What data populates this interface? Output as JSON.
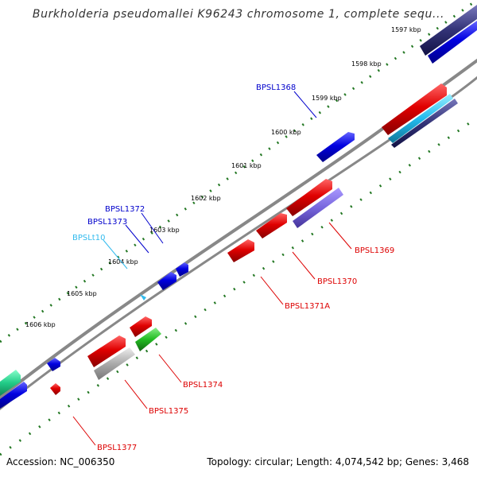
{
  "title": "Burkholderia pseudomallei K96243 chromosome 1, complete sequ...",
  "footer": {
    "accession": "Accession: NC_006350",
    "summary": "Topology: circular; Length: 4,074,542 bp; Genes: 3,468"
  },
  "ruler": {
    "ticks": [
      "1597 kbp",
      "1598 kbp",
      "1599 kbp",
      "1600 kbp",
      "1601 kbp",
      "1602 kbp",
      "1603 kbp",
      "1604 kbp",
      "1605 kbp",
      "1606 kbp"
    ]
  },
  "gene_labels": [
    {
      "text": "BPSL1368",
      "color": "#0000cc"
    },
    {
      "text": "BPSL1372",
      "color": "#0000cc"
    },
    {
      "text": "BPSL1373",
      "color": "#0000cc"
    },
    {
      "text": "BPSLt10",
      "color": "#33bbee"
    },
    {
      "text": "BPSL1369",
      "color": "#dd0000"
    },
    {
      "text": "BPSL1370",
      "color": "#dd0000"
    },
    {
      "text": "BPSL1371A",
      "color": "#dd0000"
    },
    {
      "text": "BPSL1374",
      "color": "#dd0000"
    },
    {
      "text": "BPSL1375",
      "color": "#dd0000"
    },
    {
      "text": "BPSL1377",
      "color": "#dd0000"
    }
  ],
  "colors": {
    "backbone": "#808080",
    "dots": "#227722",
    "forward_cds": "#0000e0",
    "reverse_cds": "#e00000",
    "trna": "#33bbee",
    "rna_green": "#22bb22",
    "pseudo_grey": "#aaaaaa",
    "feature_purple": "#7766dd",
    "feature_dark": "#333377",
    "feature_teal": "#22cc88"
  }
}
